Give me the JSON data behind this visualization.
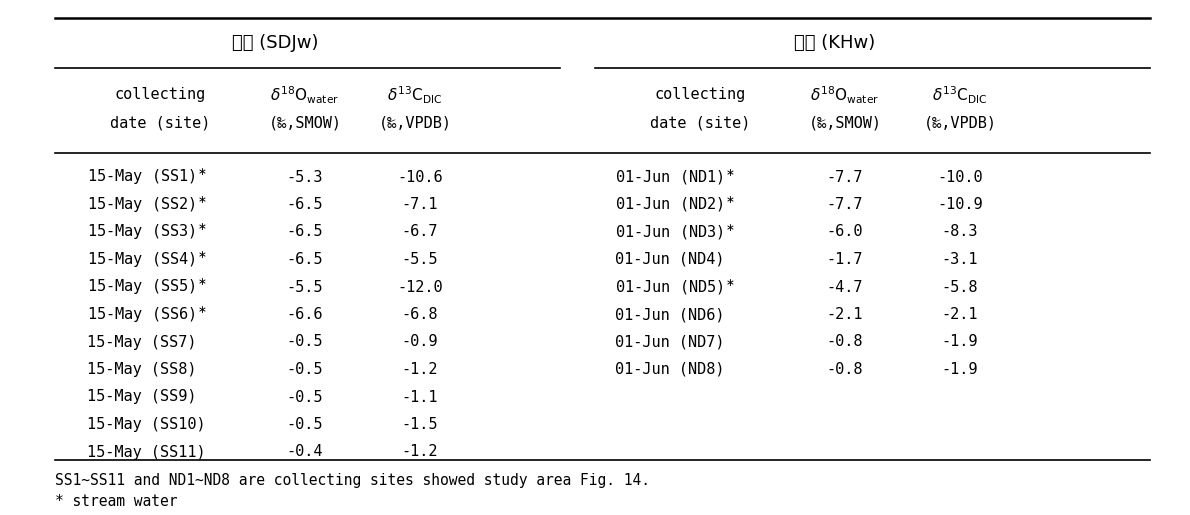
{
  "title_left": "서해 (SDJw)",
  "title_right": "남해 (KHw)",
  "left_data": [
    [
      "15-May (SS1)",
      true,
      "-5.3",
      "-10.6"
    ],
    [
      "15-May (SS2)",
      true,
      "-6.5",
      "-7.1"
    ],
    [
      "15-May (SS3)",
      true,
      "-6.5",
      "-6.7"
    ],
    [
      "15-May (SS4)",
      true,
      "-6.5",
      "-5.5"
    ],
    [
      "15-May (SS5)",
      true,
      "-5.5",
      "-12.0"
    ],
    [
      "15-May (SS6)",
      true,
      "-6.6",
      "-6.8"
    ],
    [
      "15-May (SS7)",
      false,
      "-0.5",
      "-0.9"
    ],
    [
      "15-May (SS8)",
      false,
      "-0.5",
      "-1.2"
    ],
    [
      "15-May (SS9)",
      false,
      "-0.5",
      "-1.1"
    ],
    [
      "15-May (SS10)",
      false,
      "-0.5",
      "-1.5"
    ],
    [
      "15-May (SS11)",
      false,
      "-0.4",
      "-1.2"
    ]
  ],
  "right_data": [
    [
      "01-Jun (ND1)",
      true,
      "-7.7",
      "-10.0"
    ],
    [
      "01-Jun (ND2)",
      true,
      "-7.7",
      "-10.9"
    ],
    [
      "01-Jun (ND3)",
      true,
      "-6.0",
      "-8.3"
    ],
    [
      "01-Jun (ND4)",
      false,
      "-1.7",
      "-3.1"
    ],
    [
      "01-Jun (ND5)",
      true,
      "-4.7",
      "-5.8"
    ],
    [
      "01-Jun (ND6)",
      false,
      "-2.1",
      "-2.1"
    ],
    [
      "01-Jun (ND7)",
      false,
      "-0.8",
      "-1.9"
    ],
    [
      "01-Jun (ND8)",
      false,
      "-0.8",
      "-1.9"
    ]
  ],
  "footnote1": "SS1~SS11 and ND1~ND8 are collecting sites showed study area Fig. 14.",
  "footnote2": "* stream water",
  "bg_color": "#ffffff",
  "text_color": "#000000",
  "font_size": 11.0,
  "title_font_size": 13.0,
  "header_font_size": 11.0
}
